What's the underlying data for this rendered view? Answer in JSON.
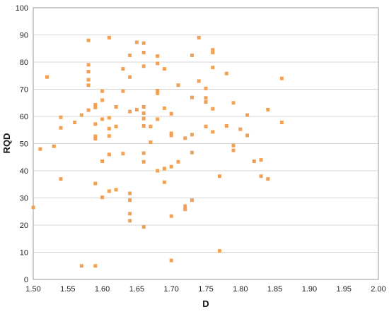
{
  "chart_data": {
    "type": "scatter",
    "title": "",
    "xlabel": "D",
    "ylabel": "RQD",
    "xlim": [
      1.5,
      2.0
    ],
    "ylim": [
      0,
      100
    ],
    "xticks": [
      "1.50",
      "1.55",
      "1.60",
      "1.65",
      "1.70",
      "1.75",
      "1.80",
      "1.85",
      "1.90",
      "1.95",
      "2.00"
    ],
    "yticks": [
      "0",
      "10",
      "20",
      "30",
      "40",
      "50",
      "60",
      "70",
      "80",
      "90",
      "100"
    ],
    "grid": "horizontal",
    "legend": "none",
    "marker_color": "#f2a154",
    "series": [
      {
        "points": [
          [
            1.5,
            26.5
          ],
          [
            1.51,
            48
          ],
          [
            1.52,
            74.5
          ],
          [
            1.53,
            49
          ],
          [
            1.54,
            37
          ],
          [
            1.54,
            55.8
          ],
          [
            1.54,
            59.7
          ],
          [
            1.56,
            57.8
          ],
          [
            1.57,
            60.5
          ],
          [
            1.57,
            5
          ],
          [
            1.58,
            88
          ],
          [
            1.58,
            79
          ],
          [
            1.58,
            76.5
          ],
          [
            1.58,
            73.5
          ],
          [
            1.58,
            71.5
          ],
          [
            1.58,
            62.3
          ],
          [
            1.59,
            64.3
          ],
          [
            1.59,
            63.3
          ],
          [
            1.59,
            57.2
          ],
          [
            1.59,
            52.7
          ],
          [
            1.59,
            51.8
          ],
          [
            1.59,
            35.3
          ],
          [
            1.59,
            5
          ],
          [
            1.6,
            69.3
          ],
          [
            1.6,
            66
          ],
          [
            1.6,
            59
          ],
          [
            1.6,
            43.5
          ],
          [
            1.6,
            30.2
          ],
          [
            1.61,
            89
          ],
          [
            1.61,
            59.5
          ],
          [
            1.61,
            55.5
          ],
          [
            1.61,
            52.8
          ],
          [
            1.61,
            46
          ],
          [
            1.61,
            32.5
          ],
          [
            1.62,
            63.5
          ],
          [
            1.62,
            56.3
          ],
          [
            1.62,
            33
          ],
          [
            1.63,
            77.5
          ],
          [
            1.63,
            69.3
          ],
          [
            1.63,
            46.3
          ],
          [
            1.64,
            82.5
          ],
          [
            1.64,
            74.5
          ],
          [
            1.64,
            61.8
          ],
          [
            1.64,
            31.7
          ],
          [
            1.64,
            29.2
          ],
          [
            1.64,
            24.2
          ],
          [
            1.64,
            21.6
          ],
          [
            1.65,
            87.3
          ],
          [
            1.65,
            62.5
          ],
          [
            1.66,
            87
          ],
          [
            1.66,
            83.5
          ],
          [
            1.66,
            78.5
          ],
          [
            1.66,
            63.5
          ],
          [
            1.66,
            61.2
          ],
          [
            1.66,
            59.2
          ],
          [
            1.66,
            56.5
          ],
          [
            1.66,
            46.5
          ],
          [
            1.66,
            43.3
          ],
          [
            1.66,
            19.3
          ],
          [
            1.67,
            56.3
          ],
          [
            1.67,
            50.5
          ],
          [
            1.68,
            82.2
          ],
          [
            1.68,
            79.5
          ],
          [
            1.68,
            69.5
          ],
          [
            1.68,
            68.5
          ],
          [
            1.68,
            59
          ],
          [
            1.68,
            40
          ],
          [
            1.69,
            77.5
          ],
          [
            1.69,
            63
          ],
          [
            1.69,
            40.8
          ],
          [
            1.69,
            35.8
          ],
          [
            1.7,
            61
          ],
          [
            1.7,
            53.8
          ],
          [
            1.7,
            53
          ],
          [
            1.7,
            41.5
          ],
          [
            1.7,
            23.3
          ],
          [
            1.7,
            7
          ],
          [
            1.71,
            71.5
          ],
          [
            1.71,
            43.3
          ],
          [
            1.72,
            52
          ],
          [
            1.72,
            27
          ],
          [
            1.72,
            25.8
          ],
          [
            1.73,
            82.5
          ],
          [
            1.73,
            67
          ],
          [
            1.73,
            53.3
          ],
          [
            1.73,
            46.7
          ],
          [
            1.73,
            29.2
          ],
          [
            1.74,
            89
          ],
          [
            1.74,
            73
          ],
          [
            1.75,
            70.3
          ],
          [
            1.75,
            66.8
          ],
          [
            1.75,
            65.3
          ],
          [
            1.75,
            56.3
          ],
          [
            1.76,
            84.5
          ],
          [
            1.76,
            83.5
          ],
          [
            1.76,
            78
          ],
          [
            1.76,
            62.8
          ],
          [
            1.76,
            54.3
          ],
          [
            1.77,
            38
          ],
          [
            1.77,
            10.5
          ],
          [
            1.78,
            75.8
          ],
          [
            1.78,
            56.5
          ],
          [
            1.79,
            65
          ],
          [
            1.79,
            49.3
          ],
          [
            1.79,
            47.5
          ],
          [
            1.8,
            55.3
          ],
          [
            1.81,
            60.5
          ],
          [
            1.81,
            53
          ],
          [
            1.82,
            43.5
          ],
          [
            1.83,
            44
          ],
          [
            1.83,
            38
          ],
          [
            1.84,
            62.5
          ],
          [
            1.84,
            37
          ],
          [
            1.86,
            74
          ],
          [
            1.86,
            57.8
          ]
        ]
      }
    ]
  }
}
